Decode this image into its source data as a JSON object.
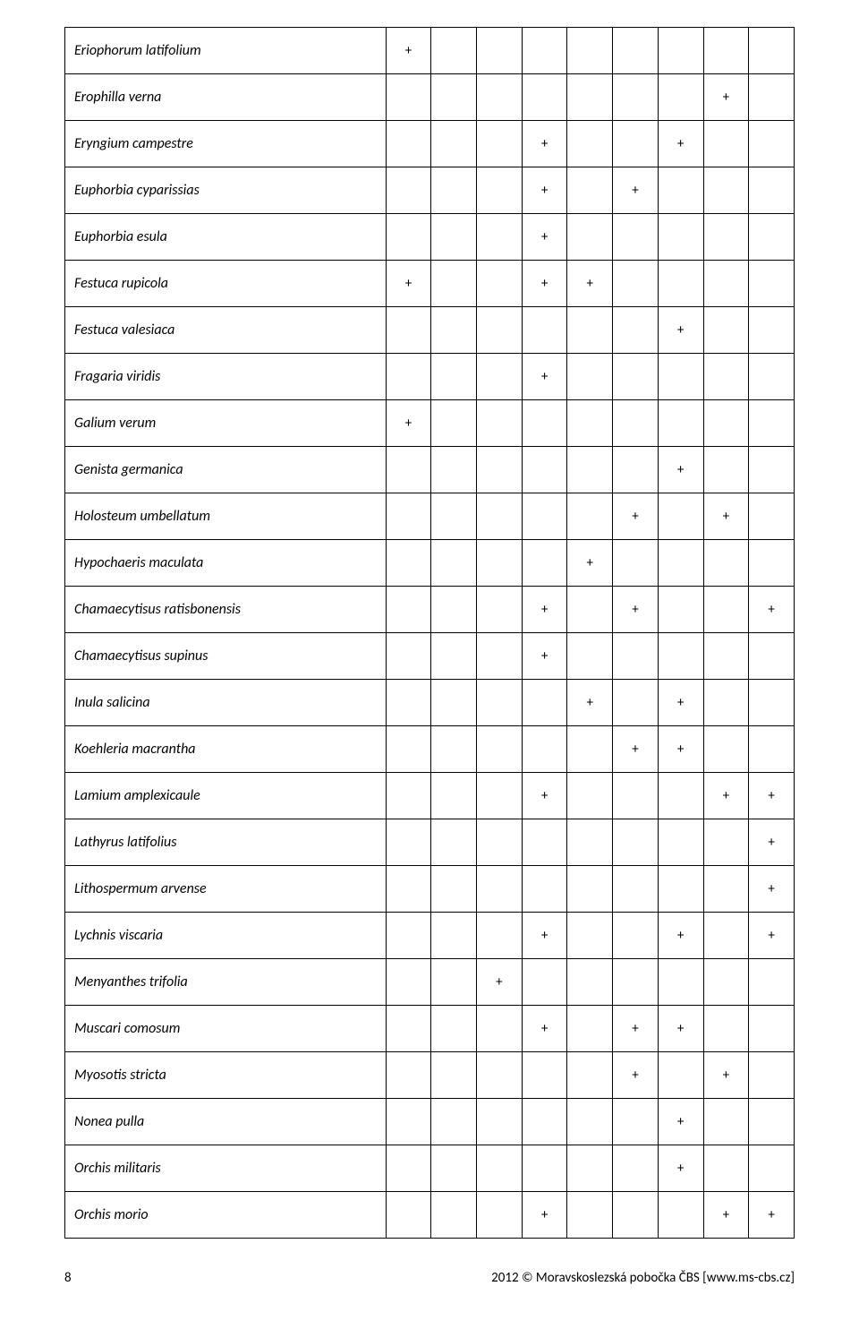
{
  "table": {
    "columns": 9,
    "rows": [
      {
        "species": "Eriophorum latifolium",
        "marks": [
          "+",
          "",
          "",
          "",
          "",
          "",
          "",
          "",
          ""
        ]
      },
      {
        "species": "Erophilla verna",
        "marks": [
          "",
          "",
          "",
          "",
          "",
          "",
          "",
          "+",
          ""
        ]
      },
      {
        "species": "Eryngium campestre",
        "marks": [
          "",
          "",
          "",
          "+",
          "",
          "",
          "+",
          "",
          ""
        ]
      },
      {
        "species": "Euphorbia cyparissias",
        "marks": [
          "",
          "",
          "",
          "+",
          "",
          "+",
          "",
          "",
          ""
        ]
      },
      {
        "species": "Euphorbia esula",
        "marks": [
          "",
          "",
          "",
          "+",
          "",
          "",
          "",
          "",
          ""
        ]
      },
      {
        "species": "Festuca rupicola",
        "marks": [
          "+",
          "",
          "",
          "+",
          "+",
          "",
          "",
          "",
          ""
        ]
      },
      {
        "species": "Festuca valesiaca",
        "marks": [
          "",
          "",
          "",
          "",
          "",
          "",
          "+",
          "",
          ""
        ]
      },
      {
        "species": "Fragaria viridis",
        "marks": [
          "",
          "",
          "",
          "+",
          "",
          "",
          "",
          "",
          ""
        ]
      },
      {
        "species": "Galium verum",
        "marks": [
          "+",
          "",
          "",
          "",
          "",
          "",
          "",
          "",
          ""
        ]
      },
      {
        "species": "Genista germanica",
        "marks": [
          "",
          "",
          "",
          "",
          "",
          "",
          "+",
          "",
          ""
        ]
      },
      {
        "species": "Holosteum umbellatum",
        "marks": [
          "",
          "",
          "",
          "",
          "",
          "+",
          "",
          "+",
          ""
        ]
      },
      {
        "species": "Hypochaeris maculata",
        "marks": [
          "",
          "",
          "",
          "",
          "+",
          "",
          "",
          "",
          ""
        ]
      },
      {
        "species": "Chamaecytisus ratisbonensis",
        "marks": [
          "",
          "",
          "",
          "+",
          "",
          "+",
          "",
          "",
          "+"
        ]
      },
      {
        "species": "Chamaecytisus supinus",
        "marks": [
          "",
          "",
          "",
          "+",
          "",
          "",
          "",
          "",
          ""
        ]
      },
      {
        "species": "Inula salicina",
        "marks": [
          "",
          "",
          "",
          "",
          "+",
          "",
          "+",
          "",
          ""
        ]
      },
      {
        "species": "Koehleria macrantha",
        "marks": [
          "",
          "",
          "",
          "",
          "",
          "+",
          "+",
          "",
          ""
        ]
      },
      {
        "species": "Lamium amplexicaule",
        "marks": [
          "",
          "",
          "",
          "+",
          "",
          "",
          "",
          "+",
          "+"
        ]
      },
      {
        "species": "Lathyrus latifolius",
        "marks": [
          "",
          "",
          "",
          "",
          "",
          "",
          "",
          "",
          "+"
        ]
      },
      {
        "species": "Lithospermum arvense",
        "marks": [
          "",
          "",
          "",
          "",
          "",
          "",
          "",
          "",
          "+"
        ]
      },
      {
        "species": "Lychnis viscaria",
        "marks": [
          "",
          "",
          "",
          "+",
          "",
          "",
          "+",
          "",
          "+"
        ]
      },
      {
        "species": "Menyanthes trifolia",
        "marks": [
          "",
          "",
          "+",
          "",
          "",
          "",
          "",
          "",
          ""
        ]
      },
      {
        "species": "Muscari comosum",
        "marks": [
          "",
          "",
          "",
          "+",
          "",
          "+",
          "+",
          "",
          ""
        ]
      },
      {
        "species": "Myosotis stricta",
        "marks": [
          "",
          "",
          "",
          "",
          "",
          "+",
          "",
          "+",
          ""
        ]
      },
      {
        "species": "Nonea pulla",
        "marks": [
          "",
          "",
          "",
          "",
          "",
          "",
          "+",
          "",
          ""
        ]
      },
      {
        "species": "Orchis militaris",
        "marks": [
          "",
          "",
          "",
          "",
          "",
          "",
          "+",
          "",
          ""
        ]
      },
      {
        "species": "Orchis morio",
        "marks": [
          "",
          "",
          "",
          "+",
          "",
          "",
          "",
          "+",
          "+"
        ]
      }
    ]
  },
  "footer": {
    "page": "8",
    "copyright": "2012 © Moravskoslezská pobočka ČBS [www.ms-cbs.cz]"
  }
}
